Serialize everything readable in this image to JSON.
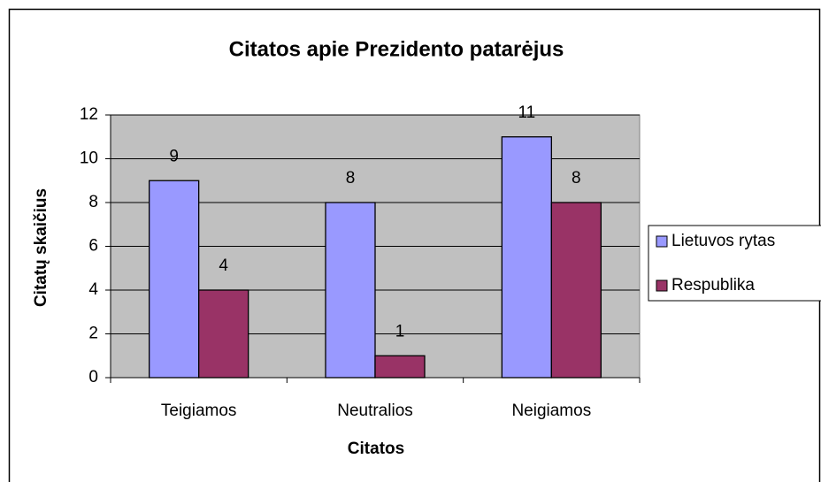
{
  "chart_data": {
    "type": "bar",
    "title": "Citatos apie Prezidento patarėjus",
    "x_label": "Citatos",
    "y_label": "Citatų skaičius",
    "categories": [
      "Teigiamos",
      "Neutralios",
      "Neigiamos"
    ],
    "series": [
      {
        "name": "Lietuvos rytas",
        "color": "#9999ff",
        "values": [
          9,
          8,
          11
        ]
      },
      {
        "name": "Respublika",
        "color": "#993366",
        "values": [
          4,
          1,
          8
        ]
      }
    ],
    "ylim": [
      0,
      12
    ],
    "yticks": [
      0,
      2,
      4,
      6,
      8,
      10,
      12
    ],
    "grid": true,
    "legend": "right"
  }
}
